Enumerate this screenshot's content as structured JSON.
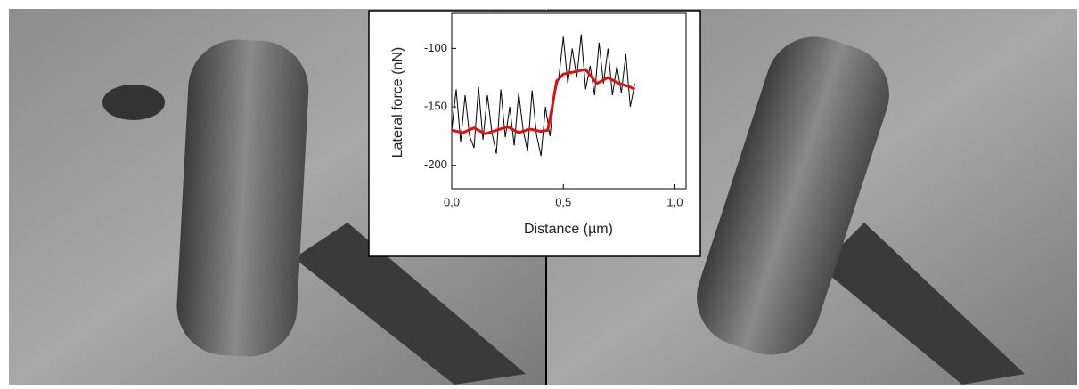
{
  "chart_data": {
    "type": "line",
    "xlabel": "Distance (µm)",
    "ylabel": "Lateral force (nN)",
    "xlim": [
      0,
      1.05
    ],
    "xticks": [
      {
        "value": 0,
        "label": "0,0"
      },
      {
        "value": 0.5,
        "label": "0,5"
      },
      {
        "value": 1.0,
        "label": "1,0"
      }
    ],
    "ylim": [
      -220,
      -70
    ],
    "yticks": [
      -100,
      -150,
      -200
    ],
    "series": [
      {
        "color": "#000000",
        "x": [
          0,
          0.02,
          0.04,
          0.06,
          0.08,
          0.1,
          0.12,
          0.14,
          0.16,
          0.18,
          0.2,
          0.22,
          0.24,
          0.26,
          0.28,
          0.3,
          0.32,
          0.34,
          0.36,
          0.38,
          0.4,
          0.42,
          0.44,
          0.46,
          0.48,
          0.5,
          0.52,
          0.54,
          0.56,
          0.58,
          0.6,
          0.62,
          0.64,
          0.66,
          0.68,
          0.7,
          0.72,
          0.74,
          0.76,
          0.78,
          0.8,
          0.82
        ],
        "values": [
          -170,
          -135,
          -180,
          -140,
          -175,
          -185,
          -133,
          -178,
          -140,
          -172,
          -190,
          -135,
          -176,
          -150,
          -183,
          -138,
          -170,
          -188,
          -136,
          -174,
          -192,
          -150,
          -175,
          -140,
          -125,
          -90,
          -130,
          -100,
          -125,
          -88,
          -135,
          -115,
          -140,
          -95,
          -130,
          -100,
          -140,
          -115,
          -138,
          -105,
          -150,
          -130
        ]
      },
      {
        "color": "#e01010",
        "x": [
          0,
          0.05,
          0.1,
          0.15,
          0.2,
          0.25,
          0.3,
          0.35,
          0.4,
          0.43,
          0.45,
          0.47,
          0.5,
          0.55,
          0.6,
          0.65,
          0.7,
          0.75,
          0.8,
          0.82
        ],
        "values": [
          -170,
          -172,
          -168,
          -173,
          -170,
          -167,
          -172,
          -169,
          -171,
          -170,
          -150,
          -128,
          -122,
          -120,
          -118,
          -130,
          -125,
          -130,
          -133,
          -135
        ]
      }
    ]
  }
}
